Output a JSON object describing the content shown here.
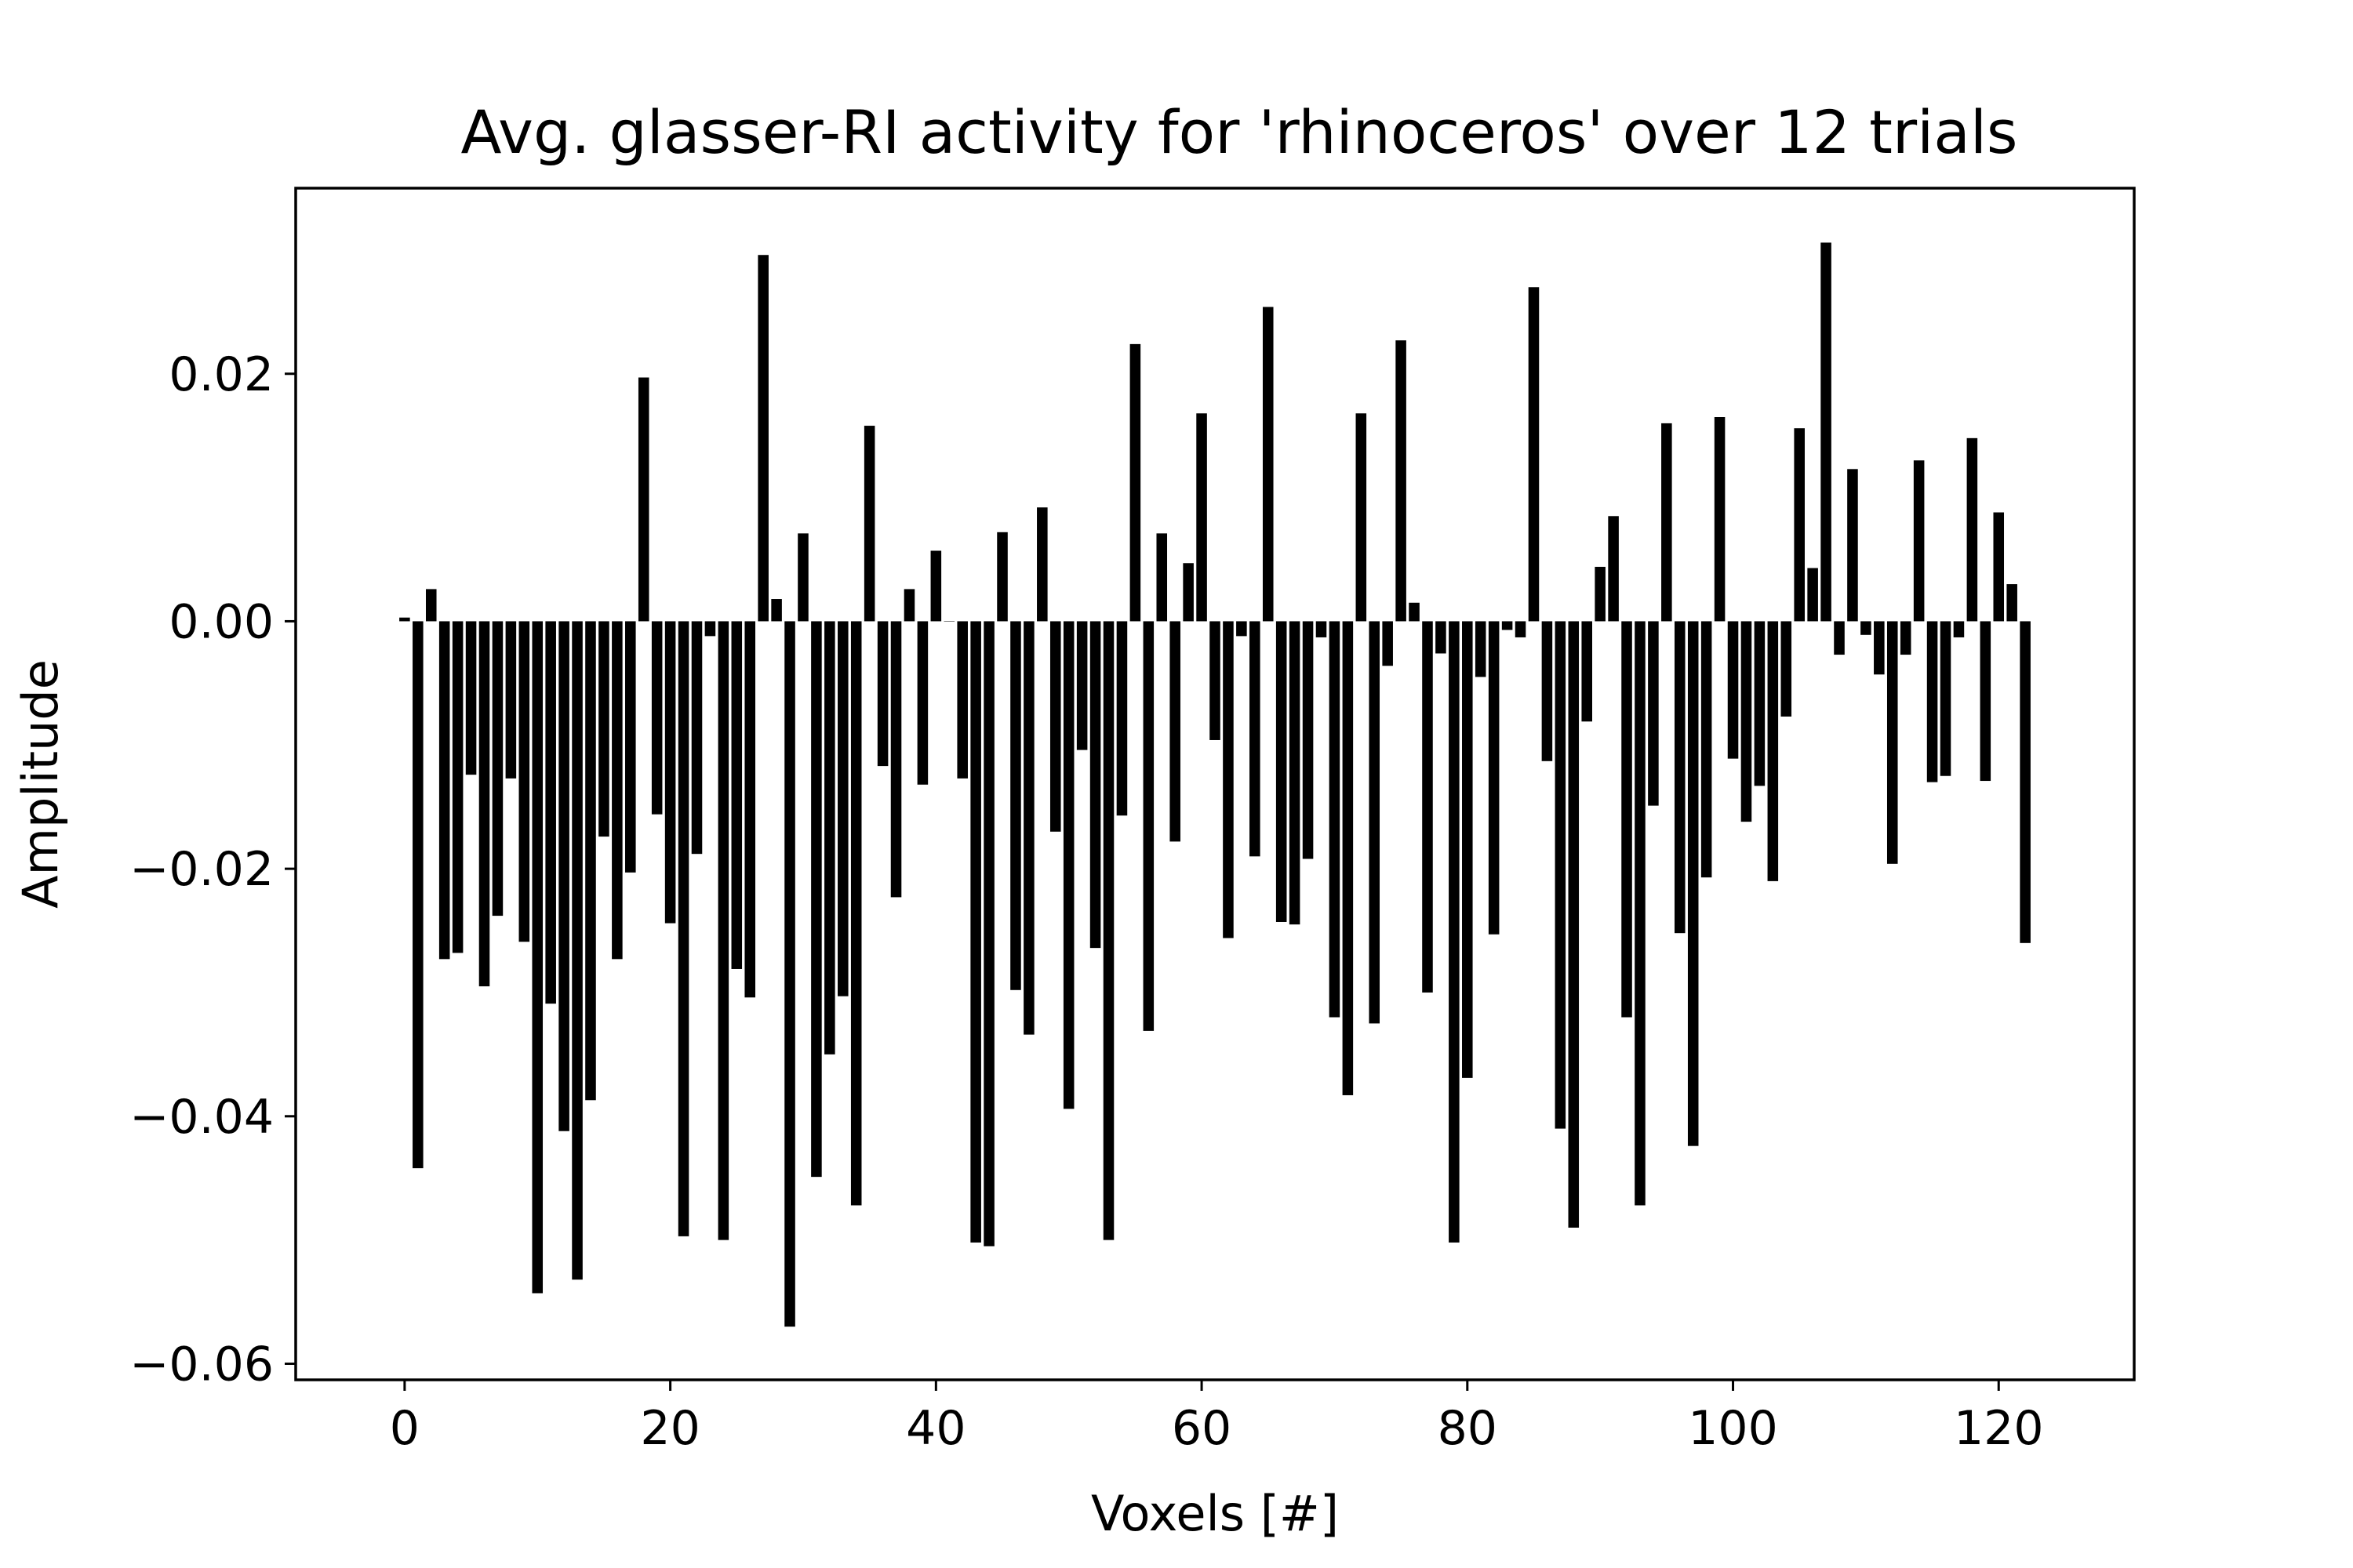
{
  "chart_data": {
    "type": "bar",
    "title": "Avg. glasser-RI activity for 'rhinoceros' over 12 trials",
    "xlabel": "Voxels [#]",
    "ylabel": "Amplitude",
    "xlim": [
      -8.2,
      130.2
    ],
    "ylim": [
      -0.0613,
      0.035
    ],
    "xticks": [
      0,
      20,
      40,
      60,
      80,
      100,
      120
    ],
    "xtick_labels": [
      "0",
      "20",
      "40",
      "60",
      "80",
      "100",
      "120"
    ],
    "yticks": [
      0.02,
      0.0,
      -0.02,
      -0.04,
      -0.06
    ],
    "ytick_labels": [
      "0.02",
      "0.00",
      "−0.02",
      "−0.04",
      "−0.06"
    ],
    "grid": false,
    "bar_color": "#000000",
    "bar_width": 0.8,
    "x": [
      0,
      1,
      2,
      3,
      4,
      5,
      6,
      7,
      8,
      9,
      10,
      11,
      12,
      13,
      14,
      15,
      16,
      17,
      18,
      19,
      20,
      21,
      22,
      23,
      24,
      25,
      26,
      27,
      28,
      29,
      30,
      31,
      32,
      33,
      34,
      35,
      36,
      37,
      38,
      39,
      40,
      41,
      42,
      43,
      44,
      45,
      46,
      47,
      48,
      49,
      50,
      51,
      52,
      53,
      54,
      55,
      56,
      57,
      58,
      59,
      60,
      61,
      62,
      63,
      64,
      65,
      66,
      67,
      68,
      69,
      70,
      71,
      72,
      73,
      74,
      75,
      76,
      77,
      78,
      79,
      80,
      81,
      82,
      83,
      84,
      85,
      86,
      87,
      88,
      89,
      90,
      91,
      92,
      93,
      94,
      95,
      96,
      97,
      98,
      99,
      100,
      101,
      102,
      103,
      104,
      105,
      106,
      107,
      108,
      109,
      110,
      111,
      112,
      113,
      114,
      115,
      116,
      117,
      118,
      119,
      120,
      121,
      122
    ],
    "values": [
      0.0003,
      -0.0442,
      0.0026,
      -0.0273,
      -0.0268,
      -0.0124,
      -0.0295,
      -0.0238,
      -0.0127,
      -0.0259,
      -0.0543,
      -0.0309,
      -0.0412,
      -0.0532,
      -0.0387,
      -0.0174,
      -0.0273,
      -0.0203,
      0.0197,
      -0.0156,
      -0.0244,
      -0.0497,
      -0.0188,
      -0.0012,
      -0.05,
      -0.0281,
      -0.0304,
      0.0296,
      0.0018,
      -0.057,
      0.0071,
      -0.0449,
      -0.035,
      -0.0303,
      -0.0472,
      0.0158,
      -0.0117,
      -0.0223,
      0.0026,
      -0.0132,
      0.0057,
      0.0,
      -0.0127,
      -0.0502,
      -0.0505,
      0.0072,
      -0.0298,
      -0.0334,
      0.0092,
      -0.017,
      -0.0394,
      -0.0104,
      -0.0264,
      -0.05,
      -0.0157,
      0.0224,
      -0.0331,
      0.0071,
      -0.0178,
      0.0047,
      0.0168,
      -0.0096,
      -0.0256,
      -0.0012,
      -0.019,
      0.0254,
      -0.0243,
      -0.0245,
      -0.0192,
      -0.0013,
      -0.032,
      -0.0383,
      0.0168,
      -0.0325,
      -0.0036,
      0.0227,
      0.0015,
      -0.03,
      -0.0026,
      -0.0502,
      -0.0369,
      -0.0045,
      -0.0253,
      -0.0007,
      -0.0013,
      0.027,
      -0.0113,
      -0.041,
      -0.049,
      -0.0081,
      0.0044,
      0.0085,
      -0.032,
      -0.0472,
      -0.0149,
      0.016,
      -0.0252,
      -0.0424,
      -0.0207,
      0.0165,
      -0.0111,
      -0.0162,
      -0.0133,
      -0.021,
      -0.0077,
      0.0156,
      0.0043,
      0.0306,
      -0.0027,
      0.0123,
      -0.0011,
      -0.0043,
      -0.0196,
      -0.0027,
      0.013,
      -0.013,
      -0.0125,
      -0.0013,
      0.0148,
      -0.0129,
      0.0088,
      0.003,
      -0.026
    ]
  }
}
